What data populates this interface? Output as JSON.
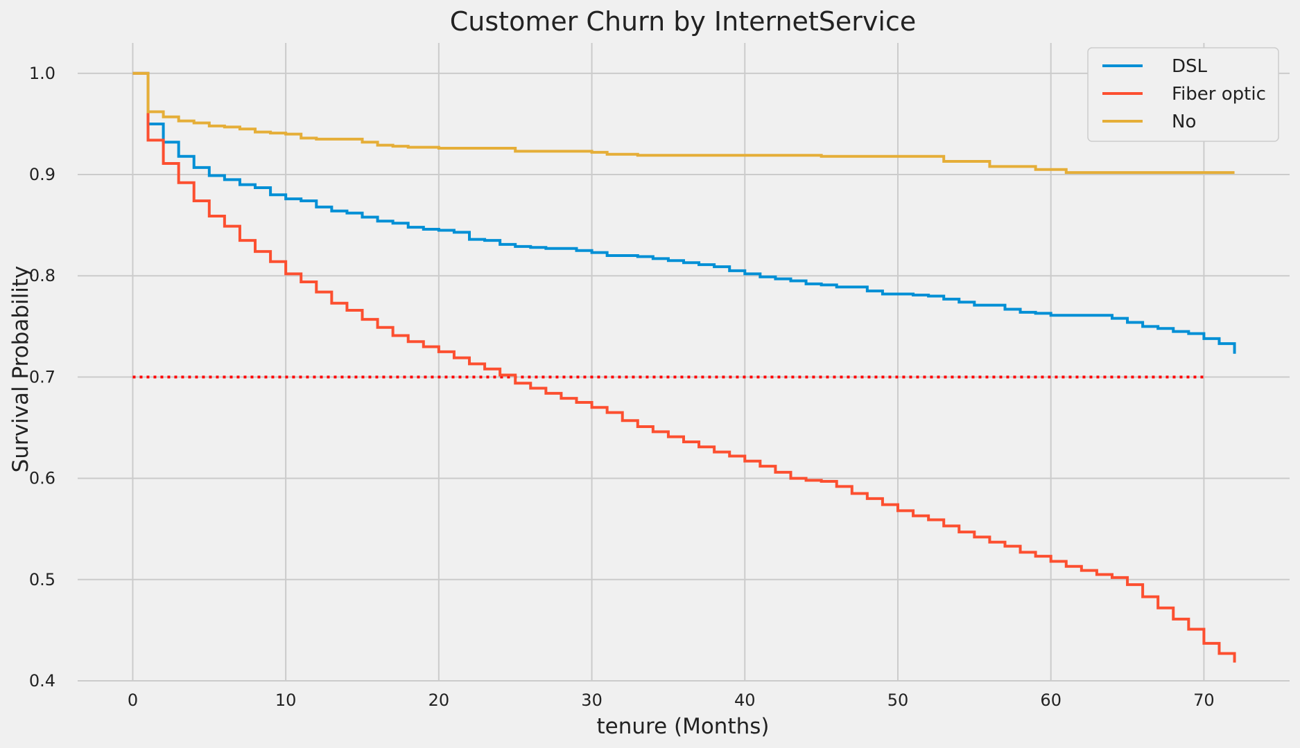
{
  "chart_data": {
    "type": "line",
    "step": true,
    "title": "Customer Churn by InternetService",
    "xlabel": "tenure (Months)",
    "ylabel": "Survival Probability",
    "xlim": [
      -3.6,
      75.6
    ],
    "ylim": [
      0.4,
      1.03
    ],
    "xticks": [
      0,
      10,
      20,
      30,
      40,
      50,
      60,
      70
    ],
    "yticks": [
      0.4,
      0.5,
      0.6,
      0.7,
      0.8,
      0.9,
      1.0
    ],
    "xtick_labels": [
      "0",
      "10",
      "20",
      "30",
      "40",
      "50",
      "60",
      "70"
    ],
    "ytick_labels": [
      "0.4",
      "0.5",
      "0.6",
      "0.7",
      "0.8",
      "0.9",
      "1.0"
    ],
    "grid": true,
    "legend_position": "top-right",
    "background": "#f0f0f0",
    "series": [
      {
        "name": "DSL",
        "color": "#008fd5",
        "x": [
          0,
          1,
          2,
          3,
          4,
          5,
          6,
          7,
          8,
          9,
          10,
          11,
          12,
          13,
          14,
          15,
          16,
          17,
          18,
          19,
          20,
          21,
          22,
          23,
          24,
          25,
          26,
          27,
          28,
          29,
          30,
          31,
          32,
          33,
          34,
          35,
          36,
          37,
          38,
          39,
          40,
          41,
          42,
          43,
          44,
          45,
          46,
          47,
          48,
          49,
          50,
          51,
          52,
          53,
          54,
          55,
          56,
          57,
          58,
          59,
          60,
          61,
          62,
          63,
          64,
          65,
          66,
          67,
          68,
          69,
          70,
          71,
          72
        ],
        "y": [
          1.0,
          0.95,
          0.932,
          0.918,
          0.907,
          0.899,
          0.895,
          0.89,
          0.887,
          0.88,
          0.876,
          0.874,
          0.868,
          0.864,
          0.862,
          0.858,
          0.854,
          0.852,
          0.848,
          0.846,
          0.845,
          0.843,
          0.836,
          0.835,
          0.831,
          0.829,
          0.828,
          0.827,
          0.827,
          0.825,
          0.823,
          0.82,
          0.82,
          0.819,
          0.817,
          0.815,
          0.813,
          0.811,
          0.809,
          0.805,
          0.802,
          0.799,
          0.797,
          0.795,
          0.792,
          0.791,
          0.789,
          0.789,
          0.785,
          0.782,
          0.782,
          0.781,
          0.78,
          0.777,
          0.774,
          0.771,
          0.771,
          0.767,
          0.764,
          0.763,
          0.761,
          0.761,
          0.761,
          0.761,
          0.758,
          0.754,
          0.75,
          0.748,
          0.745,
          0.743,
          0.738,
          0.733,
          0.723
        ]
      },
      {
        "name": "Fiber optic",
        "color": "#fc4f30",
        "x": [
          0,
          1,
          2,
          3,
          4,
          5,
          6,
          7,
          8,
          9,
          10,
          11,
          12,
          13,
          14,
          15,
          16,
          17,
          18,
          19,
          20,
          21,
          22,
          23,
          24,
          25,
          26,
          27,
          28,
          29,
          30,
          31,
          32,
          33,
          34,
          35,
          36,
          37,
          38,
          39,
          40,
          41,
          42,
          43,
          44,
          45,
          46,
          47,
          48,
          49,
          50,
          51,
          52,
          53,
          54,
          55,
          56,
          57,
          58,
          59,
          60,
          61,
          62,
          63,
          64,
          65,
          66,
          67,
          68,
          69,
          70,
          71,
          72
        ],
        "y": [
          1.0,
          0.934,
          0.911,
          0.892,
          0.874,
          0.859,
          0.849,
          0.835,
          0.824,
          0.814,
          0.802,
          0.794,
          0.784,
          0.773,
          0.766,
          0.757,
          0.749,
          0.741,
          0.735,
          0.73,
          0.725,
          0.719,
          0.713,
          0.708,
          0.702,
          0.694,
          0.689,
          0.684,
          0.679,
          0.675,
          0.67,
          0.665,
          0.657,
          0.651,
          0.646,
          0.641,
          0.636,
          0.631,
          0.626,
          0.622,
          0.617,
          0.612,
          0.606,
          0.6,
          0.598,
          0.597,
          0.592,
          0.585,
          0.58,
          0.574,
          0.568,
          0.563,
          0.559,
          0.553,
          0.547,
          0.542,
          0.537,
          0.533,
          0.527,
          0.523,
          0.518,
          0.513,
          0.509,
          0.505,
          0.502,
          0.495,
          0.483,
          0.472,
          0.461,
          0.451,
          0.437,
          0.427,
          0.418
        ]
      },
      {
        "name": "No",
        "color": "#e5ae38",
        "x": [
          0,
          1,
          2,
          3,
          4,
          5,
          6,
          7,
          8,
          9,
          10,
          11,
          12,
          13,
          14,
          15,
          16,
          17,
          18,
          19,
          20,
          21,
          22,
          23,
          24,
          25,
          26,
          27,
          28,
          29,
          30,
          31,
          32,
          33,
          34,
          35,
          36,
          37,
          38,
          39,
          40,
          41,
          42,
          43,
          44,
          45,
          46,
          47,
          48,
          49,
          50,
          51,
          52,
          53,
          54,
          55,
          56,
          57,
          58,
          59,
          60,
          61,
          62,
          63,
          64,
          65,
          66,
          67,
          68,
          69,
          70,
          71,
          72
        ],
        "y": [
          1.0,
          0.962,
          0.957,
          0.953,
          0.951,
          0.948,
          0.947,
          0.945,
          0.942,
          0.941,
          0.94,
          0.936,
          0.935,
          0.935,
          0.935,
          0.932,
          0.929,
          0.928,
          0.927,
          0.927,
          0.926,
          0.926,
          0.926,
          0.926,
          0.926,
          0.923,
          0.923,
          0.923,
          0.923,
          0.923,
          0.922,
          0.92,
          0.92,
          0.919,
          0.919,
          0.919,
          0.919,
          0.919,
          0.919,
          0.919,
          0.919,
          0.919,
          0.919,
          0.919,
          0.919,
          0.918,
          0.918,
          0.918,
          0.918,
          0.918,
          0.918,
          0.918,
          0.918,
          0.913,
          0.913,
          0.913,
          0.908,
          0.908,
          0.908,
          0.905,
          0.905,
          0.902,
          0.902,
          0.902,
          0.902,
          0.902,
          0.902,
          0.902,
          0.902,
          0.902,
          0.902,
          0.902,
          0.902
        ]
      }
    ],
    "reference_line": {
      "y": 0.7,
      "x": [
        0,
        70
      ],
      "color": "#ff0000",
      "style": "dotted"
    }
  }
}
